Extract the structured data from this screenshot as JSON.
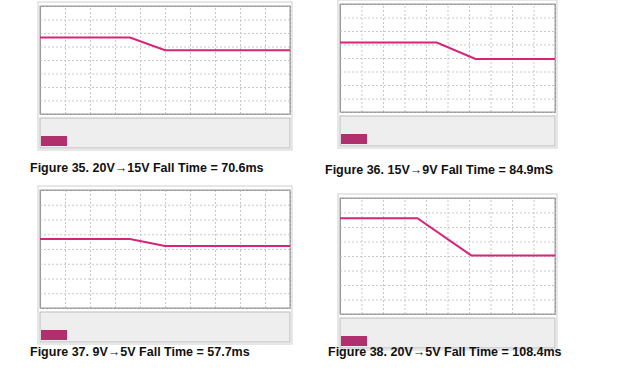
{
  "chart_data": [
    {
      "type": "line",
      "title": "Figure 35. 20V→15V Fall Time = 70.6ms",
      "x": [
        0,
        3.6,
        5.0,
        10
      ],
      "values": [
        5.67,
        5.67,
        4.73,
        4.73
      ],
      "color": "#d6247a",
      "xlim": [
        0,
        10
      ],
      "ylim": [
        0,
        8
      ],
      "xticks": [
        0,
        1,
        2,
        3,
        4,
        5,
        6,
        7,
        8,
        9,
        10
      ],
      "yticks": [
        0,
        1,
        2,
        3,
        4,
        5,
        6,
        7,
        8
      ],
      "grid": true,
      "tick_labels": false
    },
    {
      "type": "line",
      "title": "Figure 36. 15V→9V Fall Time = 84.9mS",
      "x": [
        0,
        4.5,
        6.3,
        10
      ],
      "values": [
        5.14,
        5.14,
        3.93,
        3.93
      ],
      "color": "#d6247a",
      "xlim": [
        0,
        10
      ],
      "ylim": [
        0,
        8
      ],
      "xticks": [
        0,
        1,
        2,
        3,
        4,
        5,
        6,
        7,
        8,
        9,
        10
      ],
      "yticks": [
        0,
        1,
        2,
        3,
        4,
        5,
        6,
        7,
        8
      ],
      "grid": true,
      "tick_labels": false
    },
    {
      "type": "line",
      "title": "Figure 37. 9V→5V Fall Time = 57.7ms",
      "x": [
        0,
        3.6,
        5.0,
        10
      ],
      "values": [
        4.67,
        4.67,
        4.2,
        4.2
      ],
      "color": "#d6247a",
      "xlim": [
        0,
        10
      ],
      "ylim": [
        0,
        8
      ],
      "xticks": [
        0,
        1,
        2,
        3,
        4,
        5,
        6,
        7,
        8,
        9,
        10
      ],
      "yticks": [
        0,
        1,
        2,
        3,
        4,
        5,
        6,
        7,
        8
      ],
      "grid": true,
      "tick_labels": false
    },
    {
      "type": "line",
      "title": "Figure 38. 20V→5V Fall Time = 108.4ms",
      "x": [
        0,
        3.6,
        6.1,
        10
      ],
      "values": [
        6.6,
        6.6,
        4.04,
        4.04
      ],
      "color": "#d6247a",
      "xlim": [
        0,
        10
      ],
      "ylim": [
        0,
        8
      ],
      "xticks": [
        0,
        1,
        2,
        3,
        4,
        5,
        6,
        7,
        8,
        9,
        10
      ],
      "yticks": [
        0,
        1,
        2,
        3,
        4,
        5,
        6,
        7,
        8
      ],
      "grid": true,
      "tick_labels": false
    }
  ]
}
